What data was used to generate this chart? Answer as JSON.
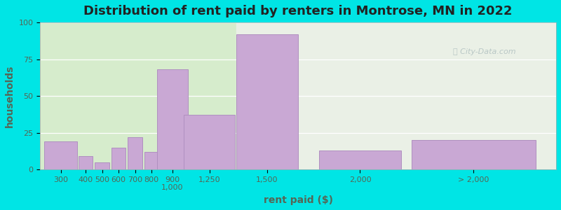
{
  "title": "Distribution of rent paid by renters in Montrose, MN in 2022",
  "xlabel": "rent paid ($)",
  "ylabel": "households",
  "bar_color": "#c9a8d4",
  "bar_edge_color": "#b090c0",
  "background_outer": "#00e5e5",
  "ylim": [
    0,
    100
  ],
  "yticks": [
    0,
    25,
    50,
    75,
    100
  ],
  "tick_labels": [
    "300",
    "400",
    "500",
    "600",
    "700",
    "800",
    "900\n1,000",
    "1,250",
    "1,500",
    "2,000",
    "> 2,000"
  ],
  "values": [
    19,
    9,
    5,
    15,
    22,
    12,
    68,
    37,
    92,
    13,
    20
  ],
  "positions": [
    1.0,
    2.2,
    3.0,
    3.8,
    4.6,
    5.4,
    6.4,
    8.2,
    11.0,
    15.5,
    21.0
  ],
  "widths": [
    1.6,
    0.7,
    0.7,
    0.7,
    0.7,
    0.7,
    1.5,
    2.5,
    3.0,
    4.0,
    6.0
  ],
  "green_boundary": 9.5,
  "tick_fontsize": 8,
  "label_fontsize": 10,
  "title_fontsize": 13,
  "xlim": [
    0,
    25
  ]
}
